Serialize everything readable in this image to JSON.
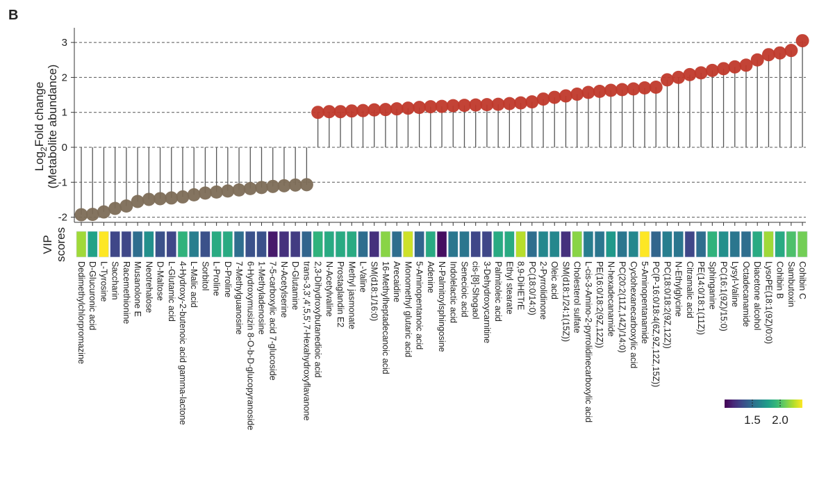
{
  "panel_label": "B",
  "chart_data": {
    "type": "lollipop",
    "title": "",
    "ylabel_main": "Log",
    "ylabel_sub": "2",
    "ylabel_rest": "Fold change",
    "ylabel_line2": "(Metabolite abundance)",
    "ylim": [
      -2.1,
      3.4
    ],
    "yticks": [
      -2,
      -1,
      0,
      1,
      2,
      3
    ],
    "grid": "dashed horizontal",
    "colors": {
      "down": "#7d6d57",
      "up": "#c0392b",
      "stem": "#555555"
    },
    "heatmap_label_line1": "VIP",
    "heatmap_label_line2": "scores",
    "colorbar": {
      "range": [
        1.0,
        2.4
      ],
      "ticks": [
        "1.5",
        "2.0"
      ],
      "tick_values": [
        1.5,
        2.0
      ],
      "placement": "bottom-right"
    },
    "categories": [
      "Dedimethylchlorpromazine",
      "D-Glucuronic acid",
      "L-Tyrosine",
      "Saccharin",
      "Racemethionine",
      "Musanolone E",
      "Neotrehalose",
      "D-Maltose",
      "L-Glutamic acid",
      "4-Hydroxy-2-butenoic acid gamma-lactone",
      "L-Malic acid",
      "Sorbitol",
      "L-Proline",
      "D-Proline",
      "7-Methylguanosine",
      "6-Hydroxymusizin 8-O-b-D-glucopyranoside",
      "1-Methyladenosine",
      "7-5-carboxylic acid 7-glucoside",
      "N-Acetylserine",
      "D-Glutamine",
      "trans-3,3',4',5,5',7-Hexahydroxyflavanone",
      "2,3-Dihydroxybutanedioic acid",
      "N-Acetylvaline",
      "Prostaglandin E2",
      "Methyl jasmonate",
      "L-Valine",
      "SM(d18:1/16:0)",
      "16-Methylheptadecanoic acid",
      "Arecaidine",
      "Monomethyl glutaric acid",
      "5-Aminopentanoic acid",
      "Adenine",
      "N-Palmitoylsphingosine",
      "Indolelactic acid",
      "Senecioic acid",
      "cis-[8]-Shogaol",
      "3-Dehydroxycarnitine",
      "Palmitoleic acid",
      "Ethyl stearate",
      "8,9-DiHETrE",
      "PC(18:0/14:0)",
      "2-Pyrrolidinone",
      "Oleic acid",
      "SM(d18:1/24:1(15Z))",
      "Cholesterol sulfate",
      "L-cis-3-Amino-2-pyrrolidinecarboxylic acid",
      "PE(16:0/18:2(9Z,12Z))",
      "N-hexadecanamide",
      "PC(20:2(11Z,14Z)/14:0)",
      "Cyclohexanecarboxylic acid",
      "5-Aminopentanamide",
      "PC(P-16:0/18:4(6Z,9Z,12Z,15Z))",
      "PC(18:0/18:2(9Z,12Z))",
      "N-Ethylglycine",
      "Citramalic acid",
      "PE(14:0/18:1(11Z))",
      "Sphinganine",
      "PC(16:1(9Z)/15:0)",
      "Lysyl-Valine",
      "Octadecanamide",
      "Diacetone alcohol",
      "LysoPE(18:1(9Z)/0:0)",
      "Cohibin B",
      "Sambutoxin",
      "Cohibin C"
    ],
    "log2fc": [
      -1.93,
      -1.92,
      -1.85,
      -1.75,
      -1.68,
      -1.55,
      -1.49,
      -1.47,
      -1.45,
      -1.42,
      -1.36,
      -1.31,
      -1.28,
      -1.25,
      -1.22,
      -1.18,
      -1.15,
      -1.12,
      -1.1,
      -1.08,
      -1.07,
      1.0,
      1.02,
      1.02,
      1.04,
      1.05,
      1.07,
      1.08,
      1.1,
      1.12,
      1.14,
      1.16,
      1.17,
      1.19,
      1.2,
      1.21,
      1.22,
      1.23,
      1.25,
      1.27,
      1.3,
      1.38,
      1.43,
      1.47,
      1.52,
      1.57,
      1.6,
      1.63,
      1.65,
      1.67,
      1.7,
      1.72,
      1.93,
      2.0,
      2.08,
      2.13,
      2.2,
      2.25,
      2.3,
      2.35,
      2.5,
      2.65,
      2.7,
      2.77,
      3.05
    ],
    "vip": [
      2.2,
      1.8,
      2.4,
      1.3,
      1.3,
      1.5,
      1.7,
      1.35,
      1.3,
      1.9,
      1.6,
      1.35,
      1.85,
      1.85,
      1.5,
      1.35,
      1.35,
      1.1,
      1.2,
      1.25,
      1.45,
      1.9,
      1.85,
      1.85,
      1.85,
      1.5,
      1.2,
      2.15,
      1.5,
      2.3,
      1.45,
      1.85,
      1.05,
      1.55,
      1.55,
      1.3,
      1.3,
      1.85,
      1.85,
      2.25,
      1.5,
      1.65,
      1.65,
      1.2,
      2.15,
      1.6,
      1.55,
      1.75,
      1.55,
      1.65,
      2.4,
      1.45,
      1.6,
      1.55,
      1.3,
      1.5,
      1.9,
      1.7,
      1.55,
      1.5,
      1.85,
      2.2,
      1.85,
      2.0,
      2.1
    ]
  }
}
